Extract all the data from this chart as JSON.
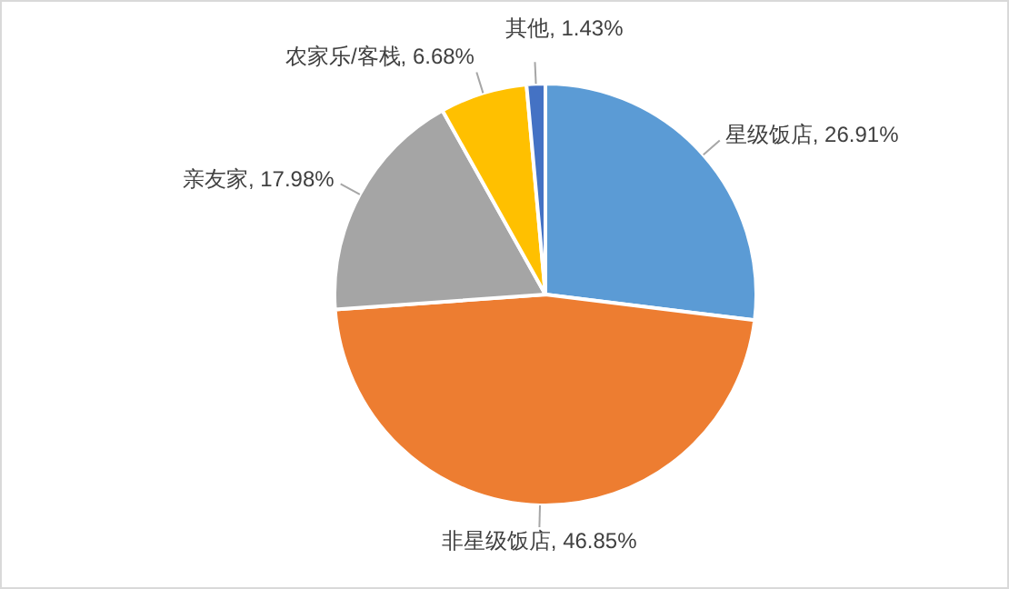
{
  "chart_data": {
    "type": "pie",
    "categories": [
      "星级饭店",
      "非星级饭店",
      "亲友家",
      "农家乐/客栈",
      "其他"
    ],
    "value_labels": [
      "26.91%",
      "46.85%",
      "17.98%",
      "6.68%",
      "1.43%"
    ],
    "values": [
      26.91,
      46.85,
      17.98,
      6.68,
      1.43
    ],
    "colors": [
      "#5b9bd5",
      "#ed7d31",
      "#a5a5a5",
      "#ffc000",
      "#4472c4"
    ],
    "legend": false
  }
}
